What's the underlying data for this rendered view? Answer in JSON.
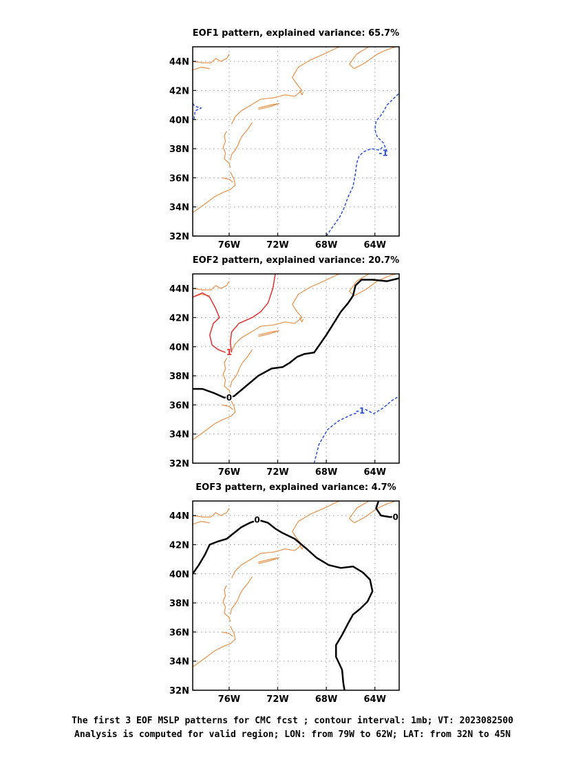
{
  "caption": {
    "line1": "The first 3 EOF MSLP patterns for CMC fcst ; contour interval: 1mb; VT: 2023082500",
    "line2": "Analysis is computed for valid region; LON: from 79W to 62W; LAT: from 32N to 45N"
  },
  "colors": {
    "coast": "#e8914a",
    "negative": "#2a4fd6",
    "positive": "#e03030",
    "zero": "#000000",
    "grid": "#999999"
  },
  "chart_data": [
    {
      "type": "contour-map",
      "title": "EOF1 pattern, explained variance: 65.7%",
      "xlim": [
        -79,
        -62
      ],
      "ylim": [
        32,
        45
      ],
      "x_ticks": [
        -76,
        -72,
        -68,
        -64
      ],
      "x_tick_labels": [
        "76W",
        "72W",
        "68W",
        "64W"
      ],
      "y_ticks": [
        32,
        34,
        36,
        38,
        40,
        42,
        44
      ],
      "y_tick_labels": [
        "32N",
        "34N",
        "36N",
        "38N",
        "40N",
        "42N",
        "44N"
      ],
      "grid": true,
      "contours": [
        {
          "level": -1,
          "label": "-1",
          "style": "dashed",
          "color": "negative",
          "points": [
            [
              -68.0,
              32.0
            ],
            [
              -67.5,
              32.6
            ],
            [
              -66.9,
              33.3
            ],
            [
              -66.5,
              34.0
            ],
            [
              -66.2,
              34.7
            ],
            [
              -65.8,
              35.4
            ],
            [
              -65.6,
              36.3
            ],
            [
              -65.5,
              37.0
            ],
            [
              -65.3,
              37.5
            ],
            [
              -64.9,
              37.8
            ],
            [
              -64.3,
              38.0
            ],
            [
              -63.6,
              37.9
            ],
            [
              -63.4,
              38.1
            ]
          ],
          "label_at": [
            -63.3,
            37.7
          ]
        },
        {
          "level": -1,
          "label": "",
          "style": "dashed",
          "color": "negative",
          "points": [
            [
              -63.0,
              37.8
            ],
            [
              -63.3,
              38.4
            ],
            [
              -63.8,
              38.8
            ],
            [
              -64.0,
              39.3
            ],
            [
              -63.9,
              39.9
            ],
            [
              -63.4,
              40.4
            ],
            [
              -63.0,
              41.0
            ],
            [
              -62.4,
              41.5
            ],
            [
              -62.0,
              41.8
            ]
          ],
          "label_at": null
        },
        {
          "level": -1,
          "label": "",
          "style": "dashed",
          "color": "negative",
          "points": [
            [
              -79.0,
              41.1
            ],
            [
              -78.8,
              40.9
            ],
            [
              -78.3,
              40.8
            ],
            [
              -78.8,
              40.6
            ],
            [
              -78.9,
              40.0
            ]
          ],
          "label_at": null
        }
      ]
    },
    {
      "type": "contour-map",
      "title": "EOF2 pattern, explained variance: 20.7%",
      "xlim": [
        -79,
        -62
      ],
      "ylim": [
        32,
        45
      ],
      "x_ticks": [
        -76,
        -72,
        -68,
        -64
      ],
      "x_tick_labels": [
        "76W",
        "72W",
        "68W",
        "64W"
      ],
      "y_ticks": [
        32,
        34,
        36,
        38,
        40,
        42,
        44
      ],
      "y_tick_labels": [
        "32N",
        "34N",
        "36N",
        "38N",
        "40N",
        "42N",
        "44N"
      ],
      "grid": true,
      "contours": [
        {
          "level": 1,
          "label": "1",
          "style": "solid",
          "color": "positive",
          "points": [
            [
              -79.0,
              43.4
            ],
            [
              -78.2,
              43.7
            ],
            [
              -77.6,
              43.4
            ],
            [
              -77.1,
              42.6
            ],
            [
              -76.8,
              42.0
            ],
            [
              -77.3,
              41.6
            ],
            [
              -77.6,
              40.8
            ],
            [
              -77.4,
              40.1
            ],
            [
              -76.9,
              39.8
            ],
            [
              -76.3,
              39.6
            ]
          ],
          "label_at": [
            -76.0,
            39.6
          ]
        },
        {
          "level": 1,
          "label": "",
          "style": "solid",
          "color": "positive",
          "points": [
            [
              -75.8,
              39.6
            ],
            [
              -75.9,
              40.3
            ],
            [
              -75.8,
              41.0
            ],
            [
              -75.2,
              41.6
            ],
            [
              -74.1,
              42.0
            ],
            [
              -73.4,
              42.4
            ],
            [
              -72.8,
              43.0
            ],
            [
              -72.4,
              44.0
            ],
            [
              -72.2,
              45.0
            ]
          ],
          "label_at": null
        },
        {
          "level": 0,
          "label": "0",
          "style": "solid",
          "color": "zero",
          "width": 2.5,
          "points": [
            [
              -79.0,
              37.1
            ],
            [
              -78.2,
              37.1
            ],
            [
              -77.2,
              36.8
            ],
            [
              -76.4,
              36.5
            ],
            [
              -75.6,
              36.6
            ],
            [
              -74.6,
              37.3
            ],
            [
              -73.6,
              38.0
            ],
            [
              -72.5,
              38.5
            ],
            [
              -71.6,
              38.6
            ],
            [
              -71.0,
              38.9
            ],
            [
              -70.4,
              39.3
            ],
            [
              -69.8,
              39.5
            ],
            [
              -69.0,
              39.6
            ],
            [
              -68.5,
              40.2
            ],
            [
              -68.0,
              40.8
            ],
            [
              -67.4,
              41.6
            ],
            [
              -66.8,
              42.4
            ],
            [
              -66.2,
              43.0
            ],
            [
              -65.8,
              43.5
            ],
            [
              -65.6,
              44.2
            ],
            [
              -65.1,
              44.6
            ],
            [
              -64.2,
              44.6
            ],
            [
              -63.0,
              44.5
            ],
            [
              -62.0,
              44.7
            ]
          ],
          "label_at": [
            -76.0,
            36.5
          ]
        },
        {
          "level": -1,
          "label": "-1",
          "style": "dashed",
          "color": "negative",
          "points": [
            [
              -69.0,
              32.0
            ],
            [
              -68.6,
              33.3
            ],
            [
              -67.9,
              34.3
            ],
            [
              -67.0,
              34.9
            ],
            [
              -66.0,
              35.3
            ],
            [
              -65.0,
              35.6
            ]
          ],
          "label_at": [
            -65.2,
            35.6
          ]
        },
        {
          "level": -1,
          "label": "",
          "style": "dashed",
          "color": "negative",
          "points": [
            [
              -64.8,
              35.7
            ],
            [
              -64.1,
              35.4
            ],
            [
              -63.3,
              35.8
            ],
            [
              -62.6,
              36.3
            ],
            [
              -62.0,
              36.6
            ]
          ],
          "label_at": null
        }
      ]
    },
    {
      "type": "contour-map",
      "title": "EOF3 pattern, explained variance: 4.7%",
      "xlim": [
        -79,
        -62
      ],
      "ylim": [
        32,
        45
      ],
      "x_ticks": [
        -76,
        -72,
        -68,
        -64
      ],
      "x_tick_labels": [
        "76W",
        "72W",
        "68W",
        "64W"
      ],
      "y_ticks": [
        32,
        34,
        36,
        38,
        40,
        42,
        44
      ],
      "y_tick_labels": [
        "32N",
        "34N",
        "36N",
        "38N",
        "40N",
        "42N",
        "44N"
      ],
      "grid": true,
      "contours": [
        {
          "level": 0,
          "label": "0",
          "style": "solid",
          "color": "zero",
          "width": 2.5,
          "points": [
            [
              -79.0,
              40.0
            ],
            [
              -78.5,
              40.6
            ],
            [
              -78.0,
              41.3
            ],
            [
              -77.6,
              42.0
            ],
            [
              -77.0,
              42.2
            ],
            [
              -76.2,
              42.4
            ],
            [
              -75.6,
              42.8
            ],
            [
              -75.0,
              43.2
            ],
            [
              -74.3,
              43.5
            ],
            [
              -73.6,
              43.7
            ],
            [
              -72.8,
              43.5
            ],
            [
              -72.2,
              43.1
            ],
            [
              -71.6,
              42.8
            ],
            [
              -70.6,
              42.4
            ],
            [
              -69.6,
              41.7
            ],
            [
              -68.8,
              41.1
            ],
            [
              -67.8,
              40.6
            ],
            [
              -66.8,
              40.4
            ],
            [
              -65.8,
              40.5
            ],
            [
              -65.0,
              40.1
            ],
            [
              -64.4,
              39.6
            ],
            [
              -64.2,
              38.8
            ],
            [
              -64.6,
              38.1
            ],
            [
              -65.2,
              37.6
            ],
            [
              -65.8,
              37.2
            ],
            [
              -66.2,
              36.6
            ],
            [
              -66.7,
              35.8
            ],
            [
              -67.2,
              35.1
            ],
            [
              -67.2,
              34.3
            ],
            [
              -66.7,
              33.4
            ],
            [
              -66.6,
              32.5
            ],
            [
              -66.5,
              32.0
            ]
          ],
          "label_at": [
            -73.7,
            43.7
          ]
        },
        {
          "level": 0,
          "label": "0",
          "style": "solid",
          "color": "zero",
          "width": 2.5,
          "points": [
            [
              -63.7,
              45.0
            ],
            [
              -63.9,
              44.5
            ],
            [
              -63.5,
              44.0
            ],
            [
              -62.8,
              43.9
            ],
            [
              -62.0,
              43.9
            ]
          ],
          "label_at": [
            -62.3,
            43.9
          ]
        }
      ]
    }
  ]
}
